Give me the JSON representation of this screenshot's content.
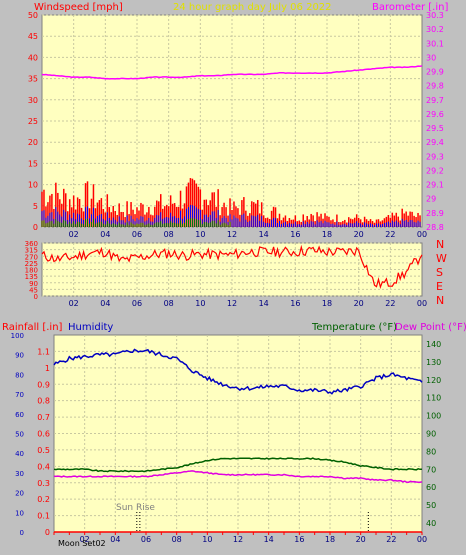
{
  "header": {
    "title": "24 hour graph day   July 06 2022",
    "windspeed_label": "Windspeed [mph]",
    "barometer_label": "Barometer [.in]"
  },
  "colors": {
    "background": "#c0c0c0",
    "plot_bg": "#ffffc0",
    "wind": "#ff0000",
    "gust_blue": "#0000ff",
    "calm_green": "#008000",
    "barometer": "#ff00ff",
    "humidity": "#0000c0",
    "temperature": "#006000",
    "dewpoint": "#e000e0",
    "rain": "#ff0000",
    "title": "#e0e000"
  },
  "x_axis": {
    "ticks": [
      "02",
      "04",
      "06",
      "08",
      "10",
      "12",
      "14",
      "16",
      "18",
      "20",
      "22",
      "00"
    ]
  },
  "direction_panel": {
    "compass": [
      "N",
      "W",
      "S",
      "E",
      "N"
    ]
  },
  "bottom_panel": {
    "rain_label": "Rainfall [.in]",
    "humidity_label": "Humidity",
    "temperature_label": "Temperature (°F)",
    "dewpoint_label": "Dew Point (°F)",
    "sun_rise": "Sun Rise",
    "moon_set": "Moon Set02"
  },
  "chart_data": [
    {
      "type": "line",
      "title": "24 hour graph day   July 06 2022",
      "x": [
        0,
        1,
        2,
        3,
        4,
        5,
        6,
        7,
        8,
        9,
        10,
        11,
        12,
        13,
        14,
        15,
        16,
        17,
        18,
        19,
        20,
        21,
        22,
        23,
        24
      ],
      "series": [
        {
          "name": "Windspeed [mph]",
          "axis": "left",
          "values": [
            8,
            7,
            6,
            7,
            5,
            4,
            4,
            5,
            5,
            7,
            8,
            6,
            4,
            5,
            4,
            3,
            2,
            3,
            2,
            2,
            2,
            1,
            2,
            3,
            2
          ]
        },
        {
          "name": "Barometer [.in]",
          "axis": "right",
          "values": [
            29.88,
            29.87,
            29.86,
            29.86,
            29.85,
            29.85,
            29.85,
            29.86,
            29.86,
            29.86,
            29.87,
            29.87,
            29.88,
            29.88,
            29.88,
            29.89,
            29.89,
            29.89,
            29.89,
            29.9,
            29.91,
            29.92,
            29.93,
            29.93,
            29.94
          ]
        }
      ],
      "xlim": [
        0,
        24
      ],
      "ylim_left": [
        0,
        50
      ],
      "ylim_right": [
        28.8,
        30.3
      ],
      "yticks_left": [
        0,
        5,
        10,
        15,
        20,
        25,
        30,
        35,
        40,
        45,
        50
      ],
      "yticks_right": [
        28.8,
        28.9,
        29,
        29.1,
        29.2,
        29.3,
        29.4,
        29.5,
        29.6,
        29.7,
        29.8,
        29.9,
        30,
        30.1,
        30.2,
        30.3
      ]
    },
    {
      "type": "line",
      "series": [
        {
          "name": "Wind direction",
          "values": [
            275,
            250,
            265,
            290,
            300,
            240,
            260,
            280,
            290,
            275,
            285,
            280,
            280,
            300,
            300,
            300,
            300,
            310,
            300,
            300,
            310,
            80,
            90,
            160,
            280
          ]
        }
      ],
      "xlim": [
        0,
        24
      ],
      "ylim": [
        0,
        360
      ],
      "yticks": [
        0,
        45,
        90,
        135,
        180,
        225,
        270,
        315,
        360
      ]
    },
    {
      "type": "line",
      "series": [
        {
          "name": "Humidity",
          "axis": "left_outer",
          "values": [
            85,
            88,
            89,
            90,
            90,
            92,
            92,
            90,
            88,
            82,
            78,
            75,
            73,
            73,
            74,
            74,
            72,
            72,
            71,
            72,
            74,
            78,
            80,
            78,
            76
          ]
        },
        {
          "name": "Temperature (°F)",
          "axis": "right",
          "values": [
            70,
            70,
            70,
            69,
            69,
            69,
            69,
            70,
            71,
            73,
            75,
            76,
            76,
            76,
            76,
            76,
            76,
            76,
            75,
            74,
            72,
            71,
            70,
            70,
            70
          ]
        },
        {
          "name": "Dew Point (°F)",
          "axis": "right",
          "values": [
            66,
            66,
            66,
            66,
            66,
            66,
            66,
            67,
            68,
            69,
            68,
            67,
            67,
            67,
            67,
            67,
            66,
            66,
            66,
            65,
            65,
            64,
            64,
            63,
            63
          ]
        },
        {
          "name": "Rainfall [.in]",
          "axis": "left_inner",
          "values": [
            0,
            0,
            0,
            0,
            0,
            0,
            0,
            0,
            0,
            0,
            0,
            0,
            0,
            0,
            0,
            0,
            0,
            0,
            0,
            0,
            0,
            0,
            0,
            0,
            0
          ]
        }
      ],
      "xlim": [
        0,
        24
      ],
      "ylim_humidity": [
        0,
        100
      ],
      "ylim_rain": [
        0,
        1.2
      ],
      "ylim_temp": [
        35,
        145
      ],
      "yticks_humidity": [
        0,
        10,
        20,
        30,
        40,
        50,
        60,
        70,
        80,
        90,
        100
      ],
      "yticks_rain": [
        0,
        0.1,
        0.2,
        0.3,
        0.4,
        0.5,
        0.6,
        0.7,
        0.8,
        0.9,
        1,
        1.1
      ],
      "yticks_temp": [
        40,
        50,
        60,
        70,
        80,
        90,
        100,
        110,
        120,
        130,
        140
      ]
    }
  ]
}
